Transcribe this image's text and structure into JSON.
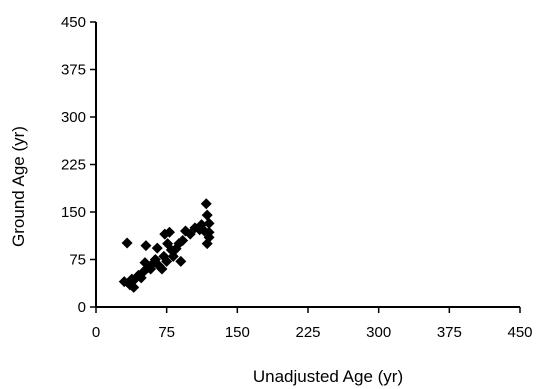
{
  "chart_data": {
    "type": "scatter",
    "xlabel": "Unadjusted Age (yr)",
    "ylabel": "Ground Age (yr)",
    "xlim": [
      0,
      450
    ],
    "ylim": [
      0,
      450
    ],
    "xticks": [
      "0",
      "75",
      "150",
      "225",
      "300",
      "375",
      "450"
    ],
    "yticks": [
      "0",
      "75",
      "150",
      "225",
      "300",
      "375",
      "450"
    ],
    "grid": false,
    "marker": "diamond",
    "marker_color": "#000000",
    "series": [
      {
        "points": [
          [
            30,
            40
          ],
          [
            33,
            101
          ],
          [
            36,
            35
          ],
          [
            38,
            44
          ],
          [
            40,
            31
          ],
          [
            42,
            45
          ],
          [
            45,
            50
          ],
          [
            48,
            46
          ],
          [
            50,
            55
          ],
          [
            52,
            70
          ],
          [
            53,
            97
          ],
          [
            55,
            62
          ],
          [
            58,
            60
          ],
          [
            60,
            68
          ],
          [
            63,
            75
          ],
          [
            65,
            93
          ],
          [
            67,
            65
          ],
          [
            70,
            60
          ],
          [
            72,
            80
          ],
          [
            73,
            115
          ],
          [
            75,
            72
          ],
          [
            76,
            100
          ],
          [
            78,
            118
          ],
          [
            80,
            90
          ],
          [
            82,
            80
          ],
          [
            85,
            92
          ],
          [
            88,
            100
          ],
          [
            90,
            72
          ],
          [
            92,
            105
          ],
          [
            95,
            120
          ],
          [
            100,
            115
          ],
          [
            105,
            125
          ],
          [
            110,
            122
          ],
          [
            112,
            130
          ],
          [
            115,
            120
          ],
          [
            117,
            163
          ],
          [
            118,
            145
          ],
          [
            118,
            100
          ],
          [
            120,
            110
          ],
          [
            120,
            118
          ],
          [
            120,
            132
          ]
        ]
      }
    ]
  }
}
